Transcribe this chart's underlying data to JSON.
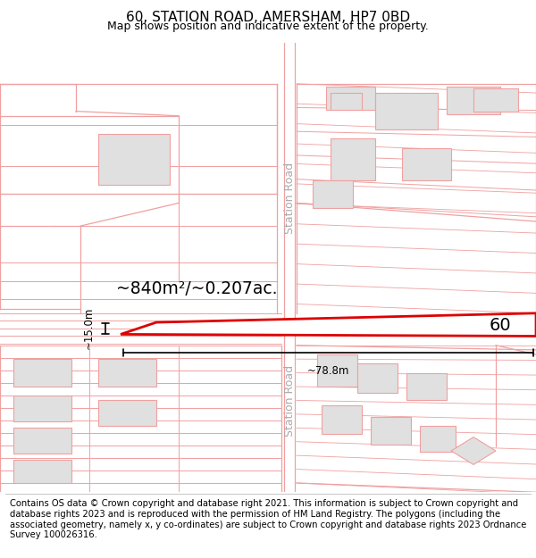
{
  "title": "60, STATION ROAD, AMERSHAM, HP7 0BD",
  "subtitle": "Map shows position and indicative extent of the property.",
  "footer": "Contains OS data © Crown copyright and database right 2021. This information is subject to Crown copyright and database rights 2023 and is reproduced with the permission of HM Land Registry. The polygons (including the associated geometry, namely x, y co-ordinates) are subject to Crown copyright and database rights 2023 Ordnance Survey 100026316.",
  "line_color": "#f0a0a0",
  "highlight_color": "#dd0000",
  "area_text": "~840m²/~0.207ac.",
  "dim_width": "~78.8m",
  "dim_height": "~15.0m",
  "label": "60",
  "station_road_text": "Station Road",
  "title_fontsize": 11,
  "subtitle_fontsize": 9,
  "footer_fontsize": 7.2,
  "gray_fill": "#e0e0e0",
  "road_label_color": "#aaaaaa"
}
